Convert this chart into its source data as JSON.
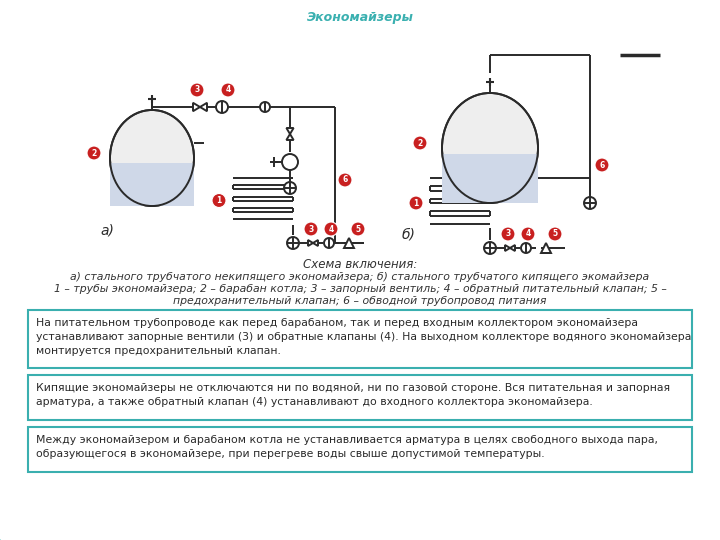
{
  "title": "Экономайзеры",
  "title_color": "#3ab0b0",
  "bg_color": "#ffffff",
  "teal_color1": "#3aafaf",
  "teal_color2": "#5ecece",
  "diagram_line_color": "#2a2a2a",
  "red_badge_color": "#c82020",
  "caption_title": "Схема включения:",
  "caption_line1": "а) стального трубчатого некипящего экономайзера; б) стального трубчатого кипящего экомайзера",
  "caption_line2": "1 – трубы экономайзера; 2 – барабан котла; 3 – запорный вентиль; 4 – обратный питательный клапан; 5 –",
  "caption_line3": "предохранительный клапан; 6 – обводной трубопровод питания",
  "box1_text": "На питательном трубопроводе как перед барабаном, так и перед входным коллектором экономайзера\nустанавливают запорные вентили (3) и обратные клапаны (4). На выходном коллекторе водяного экономайзера\nмонтируется предохранительный клапан.",
  "box2_text": "Кипящие экономайзеры не отключаются ни по водяной, ни по газовой стороне. Вся питательная и запорная\nарматура, а также обратный клапан (4) устанавливают до входного коллектора экономайзера.",
  "box3_text": "Между экономайзером и барабаном котла не устанавливается арматура в целях свободного выхода пара,\nобразующегося в экономайзере, при перегреве воды свыше допустимой температуры.",
  "box_border_color": "#3aafaf",
  "box_text_color": "#2a2a2a",
  "label_a": "а)",
  "label_b": "б)"
}
